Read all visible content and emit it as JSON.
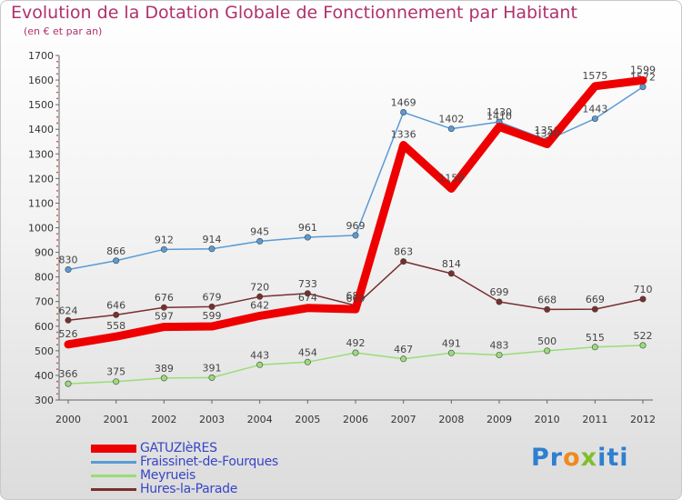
{
  "chart_data": {
    "type": "line",
    "title": "Evolution de la Dotation Globale de Fonctionnement par Habitant",
    "subtitle": "(en € et par an)",
    "xlabel": "",
    "ylabel": "",
    "ylim": [
      300,
      1700
    ],
    "yticks": [
      300,
      400,
      500,
      600,
      700,
      800,
      900,
      1000,
      1100,
      1200,
      1300,
      1400,
      1500,
      1600,
      1700
    ],
    "categories": [
      "2000",
      "2001",
      "2002",
      "2003",
      "2004",
      "2005",
      "2006",
      "2007",
      "2008",
      "2009",
      "2010",
      "2011",
      "2012"
    ],
    "grid": false,
    "legend_position": "bottom-left",
    "series": [
      {
        "name": "GATUZIèRES",
        "color": "#ee0000",
        "values": [
          526,
          558,
          597,
          599,
          642,
          674,
          669,
          1336,
          1159,
          1410,
          1340,
          1575,
          1599
        ]
      },
      {
        "name": "Fraissinet-de-Fourques",
        "color": "#5a9bd5",
        "values": [
          830,
          866,
          912,
          914,
          945,
          961,
          969,
          1469,
          1402,
          1430,
          1356,
          1443,
          1572
        ]
      },
      {
        "name": "Meyrueis",
        "color": "#99dd77",
        "values": [
          366,
          375,
          389,
          391,
          443,
          454,
          492,
          467,
          491,
          483,
          500,
          515,
          522
        ]
      },
      {
        "name": "Hures-la-Parade",
        "color": "#7a2e2e",
        "values": [
          624,
          646,
          676,
          679,
          720,
          733,
          684,
          863,
          814,
          699,
          668,
          669,
          710
        ]
      }
    ]
  },
  "branding": {
    "p1": "Pr",
    "p2": "o",
    "p3": "x",
    "p4": "iti"
  }
}
